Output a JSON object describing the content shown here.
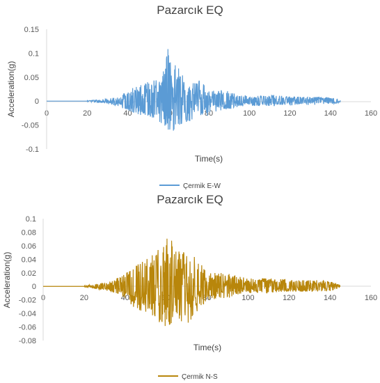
{
  "chart_data": [
    {
      "type": "line",
      "title": "Pazarcık EQ",
      "xlabel": "Time(s)",
      "ylabel": "Acceleration(g)",
      "xlim": [
        0,
        160
      ],
      "ylim": [
        -0.1,
        0.15
      ],
      "x_ticks": [
        "0",
        "20",
        "40",
        "60",
        "80",
        "100",
        "120",
        "140",
        "160"
      ],
      "y_ticks": [
        "-0.1",
        "-0.05",
        "0",
        "0.05",
        "0.1",
        "0.15"
      ],
      "legend_position": "bottom-center",
      "grid": false,
      "series": [
        {
          "name": "Çermik E-W",
          "color": "#5B9BD5",
          "x": [
            0,
            20,
            25,
            30,
            35,
            40,
            45,
            50,
            55,
            58,
            60,
            62,
            65,
            70,
            75,
            80,
            85,
            90,
            95,
            100,
            110,
            120,
            130,
            140,
            145
          ],
          "y_max": [
            0,
            0.001,
            0.003,
            0.006,
            0.01,
            0.02,
            0.035,
            0.04,
            0.045,
            0.065,
            0.113,
            0.09,
            0.07,
            0.035,
            0.045,
            0.025,
            0.025,
            0.02,
            0.015,
            0.01,
            0.012,
            0.01,
            0.009,
            0.008,
            0.003
          ],
          "y_min": [
            0,
            -0.001,
            -0.003,
            -0.006,
            -0.01,
            -0.02,
            -0.028,
            -0.035,
            -0.04,
            -0.055,
            -0.06,
            -0.07,
            -0.05,
            -0.05,
            -0.035,
            -0.03,
            -0.02,
            -0.018,
            -0.012,
            -0.01,
            -0.01,
            -0.008,
            -0.008,
            -0.007,
            -0.003
          ]
        }
      ]
    },
    {
      "type": "line",
      "title": "Pazarcık EQ",
      "xlabel": "Time(s)",
      "ylabel": "Acceleration(g)",
      "xlim": [
        0,
        160
      ],
      "ylim": [
        -0.08,
        0.1
      ],
      "x_ticks": [
        "0",
        "20",
        "40",
        "60",
        "80",
        "100",
        "120",
        "140",
        "160"
      ],
      "y_ticks": [
        "-0.08",
        "-0.06",
        "-0.04",
        "-0.02",
        "0",
        "0.02",
        "0.04",
        "0.06",
        "0.08",
        "0.1"
      ],
      "legend_position": "bottom-center",
      "grid": false,
      "series": [
        {
          "name": "Çermik N-S",
          "color": "#B8860B",
          "x": [
            0,
            20,
            25,
            30,
            35,
            40,
            45,
            50,
            55,
            58,
            60,
            62,
            65,
            70,
            75,
            80,
            85,
            90,
            95,
            100,
            110,
            120,
            130,
            140,
            145
          ],
          "y_max": [
            0,
            0.001,
            0.003,
            0.006,
            0.01,
            0.02,
            0.03,
            0.04,
            0.05,
            0.06,
            0.075,
            0.07,
            0.06,
            0.05,
            0.045,
            0.02,
            0.02,
            0.02,
            0.015,
            0.012,
            0.012,
            0.01,
            0.01,
            0.008,
            0.003
          ],
          "y_min": [
            0,
            -0.001,
            -0.003,
            -0.006,
            -0.01,
            -0.02,
            -0.035,
            -0.04,
            -0.05,
            -0.055,
            -0.062,
            -0.06,
            -0.05,
            -0.057,
            -0.04,
            -0.02,
            -0.02,
            -0.018,
            -0.012,
            -0.01,
            -0.01,
            -0.008,
            -0.008,
            -0.007,
            -0.003
          ]
        }
      ]
    }
  ]
}
